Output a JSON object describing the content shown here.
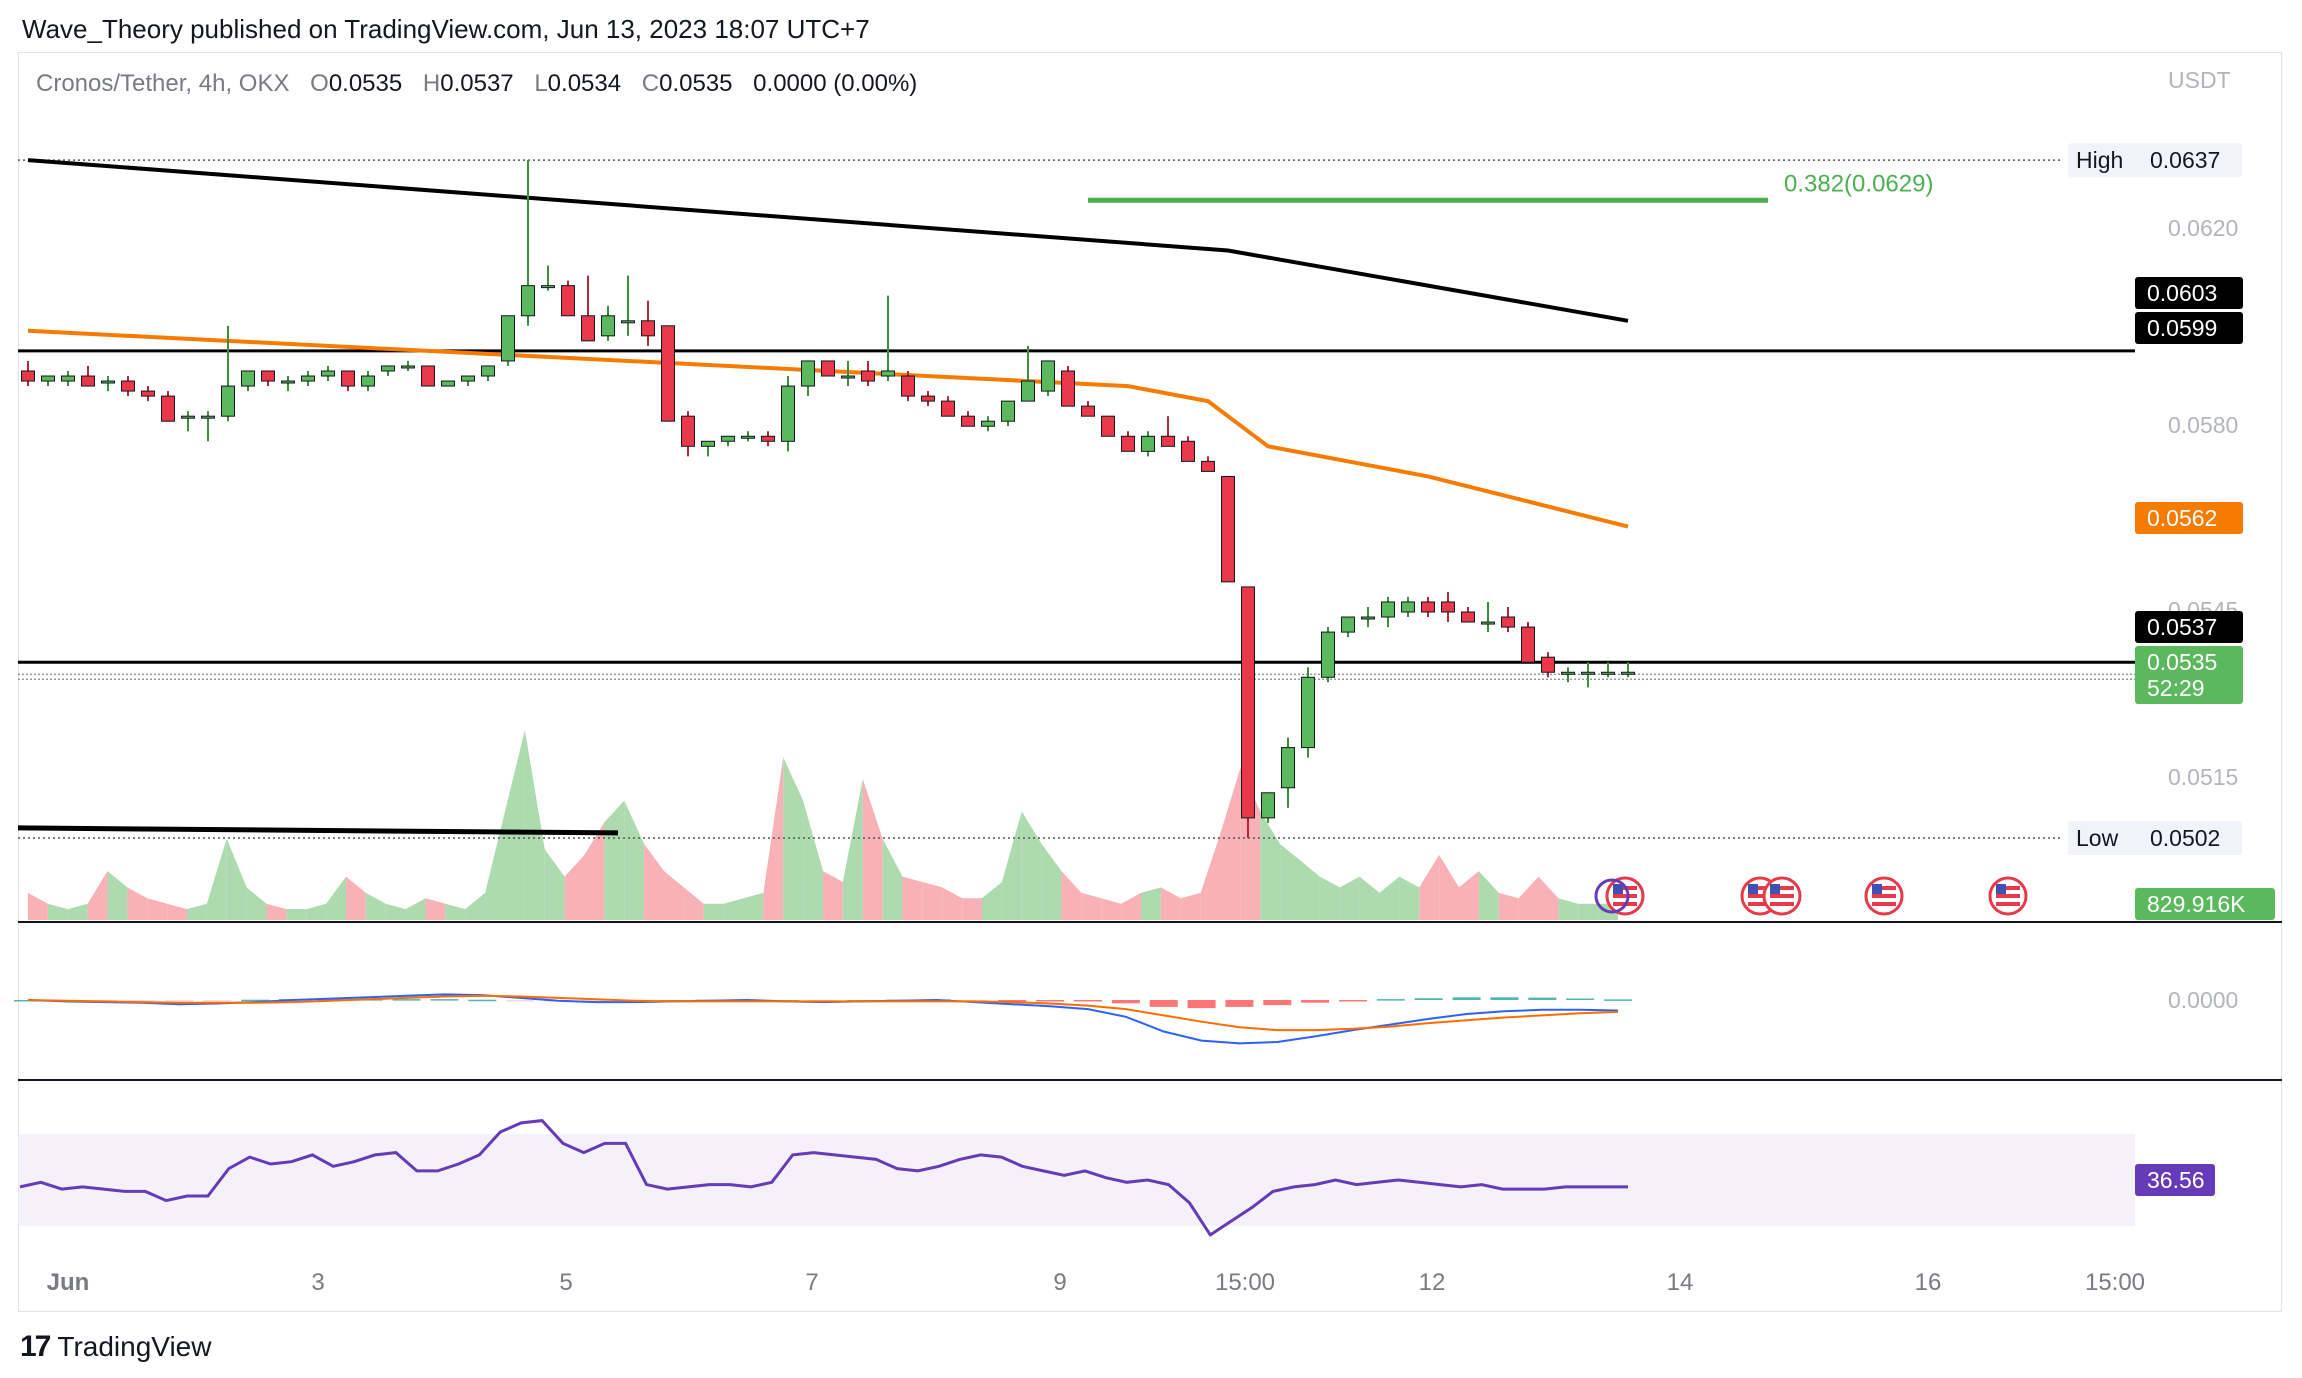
{
  "publisher": "Wave_Theory published on TradingView.com, Jun 13, 2023 18:07 UTC+7",
  "footer": {
    "brand": "TradingView",
    "mark": "17"
  },
  "header": {
    "symbol": "Cronos/Tether, 4h, OKX",
    "open_label": "O",
    "open": "0.0535",
    "high_label": "H",
    "high": "0.0537",
    "low_label": "L",
    "low": "0.0534",
    "close_label": "C",
    "close": "0.0535",
    "change": "0.0000 (0.00%)"
  },
  "colors": {
    "up": "#5cb85c",
    "down": "#e8394a",
    "ema_fast": "#f57c00",
    "ema_slow": "#000000",
    "fib": "#4caf50",
    "rsi": "#673ab7",
    "macd": "#2962ff",
    "signal": "#ff6d00",
    "vol_up": "#a5d6a7",
    "vol_down": "#f7a9ae"
  },
  "chart_data": [
    {
      "type": "candlestick",
      "pane": "price",
      "currency": "USDT",
      "ylim": [
        0.05,
        0.0642
      ],
      "price_ticks": [
        "0.0620",
        "0.0580",
        "0.0545",
        "0.0515"
      ],
      "x_ticks": [
        "Jun",
        "3",
        "5",
        "7",
        "9",
        "15:00",
        "12",
        "14",
        "16",
        "15:00"
      ],
      "candles": [
        [
          0.0595,
          0.0597,
          0.0592,
          0.0593
        ],
        [
          0.0593,
          0.0594,
          0.0592,
          0.0594
        ],
        [
          0.0593,
          0.0595,
          0.0592,
          0.0594
        ],
        [
          0.0594,
          0.0596,
          0.0592,
          0.0592
        ],
        [
          0.0593,
          0.0594,
          0.0591,
          0.0593
        ],
        [
          0.0593,
          0.0594,
          0.059,
          0.0591
        ],
        [
          0.0591,
          0.0592,
          0.0589,
          0.059
        ],
        [
          0.059,
          0.0591,
          0.0585,
          0.0585
        ],
        [
          0.0586,
          0.0587,
          0.0583,
          0.0586
        ],
        [
          0.0586,
          0.0587,
          0.0581,
          0.0586
        ],
        [
          0.0586,
          0.0604,
          0.0585,
          0.0592
        ],
        [
          0.0592,
          0.0595,
          0.0591,
          0.0595
        ],
        [
          0.0595,
          0.0595,
          0.0592,
          0.0593
        ],
        [
          0.0593,
          0.0594,
          0.0591,
          0.0593
        ],
        [
          0.0593,
          0.0595,
          0.0592,
          0.0594
        ],
        [
          0.0594,
          0.0596,
          0.0593,
          0.0595
        ],
        [
          0.0595,
          0.0595,
          0.0591,
          0.0592
        ],
        [
          0.0592,
          0.0595,
          0.0591,
          0.0594
        ],
        [
          0.0595,
          0.0596,
          0.0594,
          0.0596
        ],
        [
          0.0596,
          0.0597,
          0.0595,
          0.0596
        ],
        [
          0.0596,
          0.0596,
          0.0592,
          0.0592
        ],
        [
          0.0592,
          0.0593,
          0.0592,
          0.0593
        ],
        [
          0.0593,
          0.0594,
          0.0592,
          0.0594
        ],
        [
          0.0594,
          0.0596,
          0.0593,
          0.0596
        ],
        [
          0.0597,
          0.0606,
          0.0596,
          0.0606
        ],
        [
          0.0606,
          0.0637,
          0.0604,
          0.0612
        ],
        [
          0.0612,
          0.0616,
          0.0611,
          0.0612
        ],
        [
          0.0612,
          0.0613,
          0.0606,
          0.0606
        ],
        [
          0.0606,
          0.0614,
          0.0601,
          0.0601
        ],
        [
          0.0602,
          0.0608,
          0.0601,
          0.0606
        ],
        [
          0.0605,
          0.0614,
          0.0602,
          0.0605
        ],
        [
          0.0605,
          0.0609,
          0.06,
          0.0602
        ],
        [
          0.0604,
          0.0604,
          0.0585,
          0.0585
        ],
        [
          0.0586,
          0.0587,
          0.0578,
          0.058
        ],
        [
          0.058,
          0.0581,
          0.0578,
          0.0581
        ],
        [
          0.0581,
          0.0582,
          0.058,
          0.0582
        ],
        [
          0.0582,
          0.0583,
          0.0581,
          0.0582
        ],
        [
          0.0582,
          0.0583,
          0.058,
          0.0581
        ],
        [
          0.0581,
          0.0594,
          0.0579,
          0.0592
        ],
        [
          0.0592,
          0.0597,
          0.059,
          0.0597
        ],
        [
          0.0597,
          0.0597,
          0.0594,
          0.0594
        ],
        [
          0.0594,
          0.0597,
          0.0592,
          0.0594
        ],
        [
          0.0595,
          0.0597,
          0.0592,
          0.0593
        ],
        [
          0.0594,
          0.061,
          0.0593,
          0.0595
        ],
        [
          0.0594,
          0.0595,
          0.0589,
          0.059
        ],
        [
          0.059,
          0.0591,
          0.0588,
          0.0589
        ],
        [
          0.0589,
          0.059,
          0.0586,
          0.0586
        ],
        [
          0.0586,
          0.0587,
          0.0584,
          0.0584
        ],
        [
          0.0584,
          0.0586,
          0.0583,
          0.0585
        ],
        [
          0.0585,
          0.0589,
          0.0584,
          0.0589
        ],
        [
          0.0589,
          0.06,
          0.0589,
          0.0593
        ],
        [
          0.0591,
          0.0596,
          0.059,
          0.0597
        ],
        [
          0.0595,
          0.0596,
          0.0588,
          0.0588
        ],
        [
          0.0588,
          0.0589,
          0.0586,
          0.0586
        ],
        [
          0.0586,
          0.0586,
          0.0582,
          0.0582
        ],
        [
          0.0582,
          0.0583,
          0.0579,
          0.0579
        ],
        [
          0.0579,
          0.0583,
          0.0578,
          0.0582
        ],
        [
          0.0582,
          0.0586,
          0.058,
          0.058
        ],
        [
          0.0581,
          0.0582,
          0.0577,
          0.0577
        ],
        [
          0.0577,
          0.0578,
          0.0575,
          0.0575
        ],
        [
          0.0574,
          0.0574,
          0.0553,
          0.0553
        ],
        [
          0.0552,
          0.0552,
          0.0502,
          0.0506
        ],
        [
          0.0506,
          0.0511,
          0.0505,
          0.0511
        ],
        [
          0.0512,
          0.0522,
          0.0508,
          0.052
        ],
        [
          0.052,
          0.0536,
          0.0518,
          0.0534
        ],
        [
          0.0534,
          0.0544,
          0.0533,
          0.0543
        ],
        [
          0.0543,
          0.0546,
          0.0542,
          0.0546
        ],
        [
          0.0546,
          0.0548,
          0.0544,
          0.0546
        ],
        [
          0.0546,
          0.055,
          0.0544,
          0.0549
        ],
        [
          0.0547,
          0.055,
          0.0546,
          0.0549
        ],
        [
          0.0549,
          0.055,
          0.0546,
          0.0547
        ],
        [
          0.0549,
          0.0551,
          0.0545,
          0.0547
        ],
        [
          0.0547,
          0.0548,
          0.0545,
          0.0545
        ],
        [
          0.0545,
          0.0549,
          0.0543,
          0.0545
        ],
        [
          0.0546,
          0.0548,
          0.0543,
          0.0544
        ],
        [
          0.0544,
          0.0545,
          0.0537,
          0.0537
        ],
        [
          0.0538,
          0.0539,
          0.0534,
          0.0535
        ],
        [
          0.0535,
          0.0536,
          0.0533,
          0.0535
        ],
        [
          0.0535,
          0.0537,
          0.0532,
          0.0535
        ],
        [
          0.0535,
          0.0537,
          0.0534,
          0.0535
        ],
        [
          0.0535,
          0.0537,
          0.0534,
          0.0535
        ]
      ],
      "ema_slow": [
        [
          0,
          0.0637
        ],
        [
          30,
          0.0628
        ],
        [
          60,
          0.0619
        ],
        [
          80,
          0.0605
        ]
      ],
      "ema_fast": [
        [
          0,
          0.0603
        ],
        [
          20,
          0.0599
        ],
        [
          40,
          0.0595
        ],
        [
          55,
          0.0592
        ],
        [
          59,
          0.0589
        ],
        [
          62,
          0.058
        ],
        [
          70,
          0.0574
        ],
        [
          80,
          0.0564
        ]
      ],
      "levels": {
        "high": {
          "label": "High",
          "value": "0.0637",
          "price": 0.0637
        },
        "low": {
          "label": "Low",
          "value": "0.0502",
          "price": 0.0502
        },
        "resistance": {
          "value": "0.0599",
          "price": 0.0599
        },
        "support": {
          "value": "0.0537",
          "price": 0.0537
        },
        "ema_slow_tag": {
          "value": "0.0603"
        },
        "ema_fast_tag": {
          "value": "0.0562"
        },
        "last": {
          "value": "0.0535",
          "countdown": "52:29",
          "price": 0.0535
        },
        "fib": {
          "label": "0.382(0.0629)",
          "price": 0.0629,
          "from": 53,
          "to": 87
        },
        "old_trend": {
          "from": 0,
          "to": 28,
          "p1": 0.0504,
          "p2": 0.0503
        }
      },
      "event_icons": 5
    },
    {
      "type": "bar",
      "pane": "volume",
      "last_value": "829.916K",
      "values": [
        5,
        3,
        2,
        3,
        9,
        6,
        4,
        3,
        2,
        3,
        15,
        6,
        3,
        2,
        2,
        3,
        8,
        5,
        3,
        2,
        4,
        3,
        2,
        5,
        20,
        35,
        13,
        8,
        12,
        18,
        22,
        14,
        9,
        6,
        3,
        3,
        4,
        5,
        30,
        22,
        9,
        7,
        26,
        15,
        8,
        7,
        6,
        4,
        4,
        7,
        20,
        14,
        9,
        5,
        4,
        3,
        5,
        6,
        4,
        5,
        16,
        28,
        20,
        14,
        11,
        8,
        6,
        8,
        5,
        8,
        6,
        12,
        6,
        9,
        5,
        4,
        8,
        4,
        3,
        3,
        3
      ]
    },
    {
      "type": "line",
      "pane": "macd",
      "zero_label": "0.0000",
      "macd": [
        0,
        -0.2,
        -0.3,
        -0.4,
        -0.6,
        -0.5,
        -0.3,
        0,
        0.2,
        0.4,
        0.6,
        0.8,
        0.7,
        0.3,
        -0.1,
        -0.3,
        -0.3,
        -0.2,
        -0.1,
        0,
        -0.2,
        -0.3,
        -0.2,
        -0.1,
        0,
        -0.3,
        -0.6,
        -0.9,
        -1.3,
        -2.4,
        -4.5,
        -5.8,
        -6.2,
        -6.0,
        -5.2,
        -4.3,
        -3.5,
        -2.7,
        -2.0,
        -1.6,
        -1.4,
        -1.4,
        -1.5
      ],
      "signal": [
        0,
        -0.1,
        -0.2,
        -0.3,
        -0.4,
        -0.4,
        -0.4,
        -0.3,
        -0.1,
        0.1,
        0.3,
        0.5,
        0.6,
        0.5,
        0.3,
        0.1,
        -0.1,
        -0.2,
        -0.2,
        -0.2,
        -0.2,
        -0.2,
        -0.2,
        -0.2,
        -0.2,
        -0.2,
        -0.3,
        -0.5,
        -0.8,
        -1.3,
        -2.2,
        -3.1,
        -3.9,
        -4.3,
        -4.3,
        -4.1,
        -3.8,
        -3.3,
        -2.9,
        -2.5,
        -2.2,
        -1.9,
        -1.7
      ]
    },
    {
      "type": "line",
      "pane": "rsi",
      "last_value": "36.56",
      "band": [
        30,
        70
      ],
      "ylim": [
        15,
        85
      ],
      "values": [
        47,
        49,
        46,
        47,
        46,
        45,
        45,
        41,
        43,
        43,
        55,
        60,
        57,
        58,
        61,
        56,
        58,
        61,
        62,
        54,
        54,
        57,
        61,
        71,
        75,
        76,
        66,
        62,
        66,
        66,
        48,
        46,
        47,
        48,
        48,
        47,
        49,
        61,
        62,
        61,
        60,
        59,
        55,
        54,
        56,
        59,
        61,
        60,
        56,
        54,
        52,
        54,
        51,
        49,
        50,
        48,
        40,
        26,
        32,
        38,
        45,
        47,
        48,
        50,
        48,
        49,
        50,
        49,
        48,
        47,
        48,
        46,
        46,
        46,
        47,
        47,
        47,
        47
      ]
    }
  ]
}
